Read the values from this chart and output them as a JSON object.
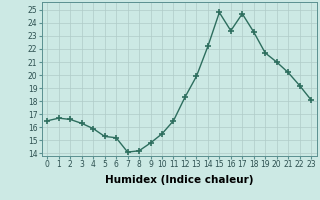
{
  "x": [
    0,
    1,
    2,
    3,
    4,
    5,
    6,
    7,
    8,
    9,
    10,
    11,
    12,
    13,
    14,
    15,
    16,
    17,
    18,
    19,
    20,
    21,
    22,
    23
  ],
  "y": [
    16.5,
    16.7,
    16.6,
    16.3,
    15.9,
    15.3,
    15.2,
    14.1,
    14.2,
    14.8,
    15.5,
    16.5,
    18.3,
    19.9,
    22.2,
    24.8,
    23.4,
    24.7,
    23.3,
    21.7,
    21.0,
    20.2,
    19.2,
    18.1
  ],
  "line_color": "#2d6e5e",
  "marker": "+",
  "marker_size": 4,
  "marker_lw": 1.2,
  "bg_color": "#cce9e4",
  "grid_color": "#b0ccc8",
  "plot_bg_color": "#cce9e4",
  "xlabel": "Humidex (Indice chaleur)",
  "xlim": [
    -0.5,
    23.5
  ],
  "ylim": [
    13.8,
    25.6
  ],
  "yticks": [
    14,
    15,
    16,
    17,
    18,
    19,
    20,
    21,
    22,
    23,
    24,
    25
  ],
  "xticks": [
    0,
    1,
    2,
    3,
    4,
    5,
    6,
    7,
    8,
    9,
    10,
    11,
    12,
    13,
    14,
    15,
    16,
    17,
    18,
    19,
    20,
    21,
    22,
    23
  ],
  "tick_fontsize": 5.5,
  "xlabel_fontsize": 7.5,
  "line_width": 1.0
}
